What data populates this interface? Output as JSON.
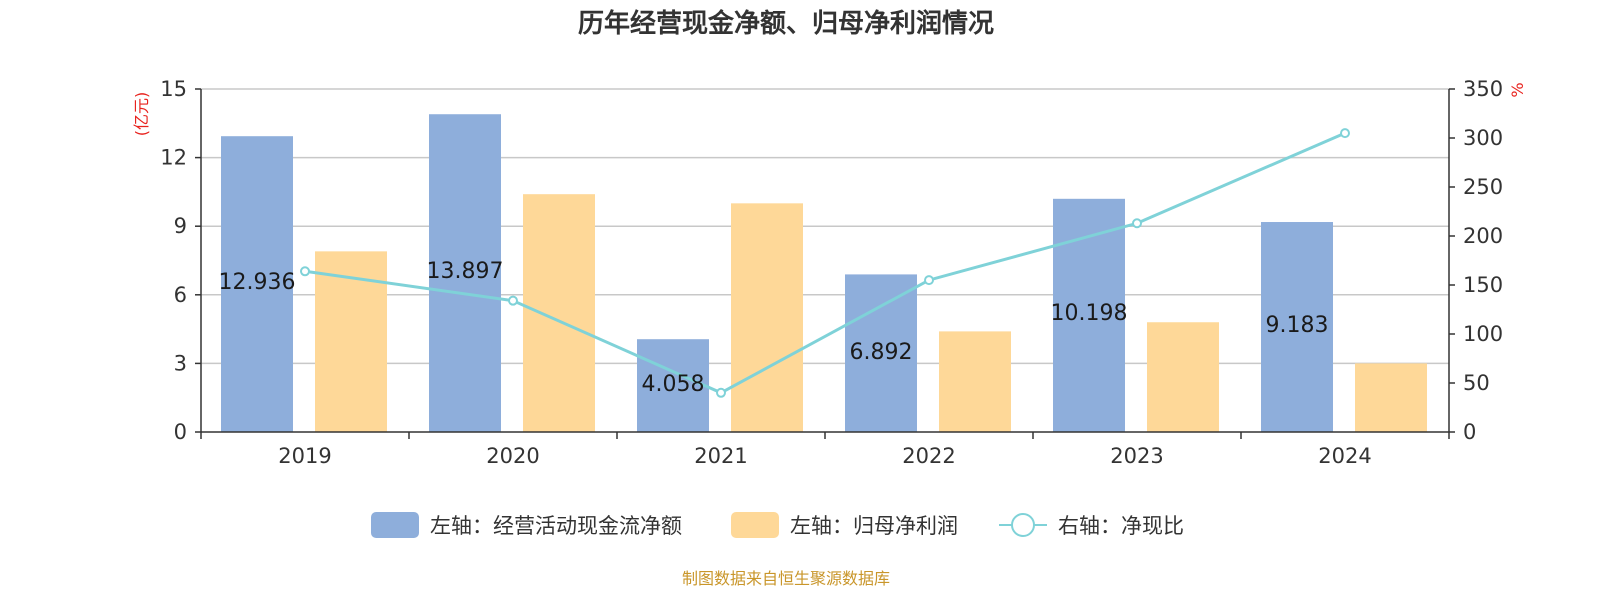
{
  "title": "历年经营现金净额、归母净利润情况",
  "source": "制图数据来自恒生聚源数据库",
  "chart_data": {
    "type": "bar",
    "categories": [
      "2019",
      "2020",
      "2021",
      "2022",
      "2023",
      "2024"
    ],
    "series": [
      {
        "name": "左轴：经营活动现金流净额",
        "type": "bar",
        "axis": "left",
        "color": "#8eaedb",
        "values": [
          12.936,
          13.897,
          4.058,
          6.892,
          10.198,
          9.183
        ],
        "labels": [
          "12.936",
          "13.897",
          "4.058",
          "6.892",
          "10.198",
          "9.183"
        ]
      },
      {
        "name": "左轴：归母净利润",
        "type": "bar",
        "axis": "left",
        "color": "#fed898",
        "values": [
          7.9,
          10.4,
          10.0,
          4.4,
          4.8,
          3.0
        ]
      },
      {
        "name": "右轴：净现比",
        "type": "line",
        "axis": "right",
        "color": "#7fd2d8",
        "values": [
          164,
          134,
          40,
          155,
          213,
          305
        ]
      }
    ],
    "y_left": {
      "label": "(亿元)",
      "min": 0,
      "max": 15,
      "ticks": [
        0,
        3,
        6,
        9,
        12,
        15
      ]
    },
    "y_right": {
      "label": "%",
      "min": 0,
      "max": 350,
      "ticks": [
        0,
        50,
        100,
        150,
        200,
        250,
        300,
        350
      ]
    },
    "grid": true,
    "legend_position": "bottom"
  }
}
